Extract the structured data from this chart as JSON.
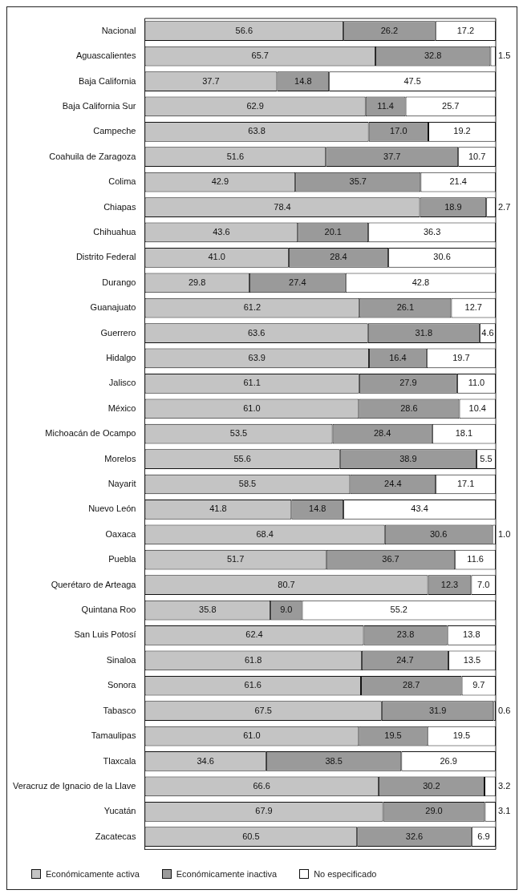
{
  "chart_data": {
    "type": "bar",
    "orientation": "horizontal",
    "stacked": true,
    "legend": "bottom",
    "categories": [
      "Nacional",
      "Aguascalientes",
      "Baja California",
      "Baja California Sur",
      "Campeche",
      "Coahuila de Zaragoza",
      "Colima",
      "Chiapas",
      "Chihuahua",
      "Distrito Federal",
      "Durango",
      "Guanajuato",
      "Guerrero",
      "Hidalgo",
      "Jalisco",
      "México",
      "Michoacán de Ocampo",
      "Morelos",
      "Nayarit",
      "Nuevo León",
      "Oaxaca",
      "Puebla",
      "Querétaro de Arteaga",
      "Quintana Roo",
      "San Luis Potosí",
      "Sinaloa",
      "Sonora",
      "Tabasco",
      "Tamaulipas",
      "Tlaxcala",
      "Veracruz de Ignacio de la Llave",
      "Yucatán",
      "Zacatecas"
    ],
    "series": [
      {
        "name": "Económicamente activa",
        "color": "#c4c4c4",
        "values": [
          56.6,
          65.7,
          37.7,
          62.9,
          63.8,
          51.6,
          42.9,
          78.4,
          43.6,
          41.0,
          29.8,
          61.2,
          63.6,
          63.9,
          61.1,
          61.0,
          53.5,
          55.6,
          58.5,
          41.8,
          68.4,
          51.7,
          80.7,
          35.8,
          62.4,
          61.8,
          61.6,
          67.5,
          61.0,
          34.6,
          66.6,
          67.9,
          60.5
        ],
        "value_labels": [
          "56.6",
          "65.7",
          "37.7",
          "62.9",
          "63.8",
          "51.6",
          "42.9",
          "78.4",
          "43.6",
          "41.0",
          "29.8",
          "61.2",
          "63.6",
          "63.9",
          "61.1",
          "61.0",
          "53.5",
          "55.6",
          "58.5",
          "41.8",
          "68.4",
          "51.7",
          "80.7",
          "35.8",
          "62.4",
          "61.8",
          "61.6",
          "67.5",
          "61.0",
          "34.6",
          "66.6",
          "67.9",
          "60.5"
        ]
      },
      {
        "name": "Económicamente inactiva",
        "color": "#9a9a9a",
        "values": [
          26.2,
          32.8,
          14.8,
          11.4,
          17.0,
          37.7,
          35.7,
          18.9,
          20.1,
          28.4,
          27.4,
          26.1,
          31.8,
          16.4,
          27.9,
          28.6,
          28.4,
          38.9,
          24.4,
          14.8,
          30.6,
          36.7,
          12.3,
          9.0,
          23.8,
          24.7,
          28.7,
          31.9,
          19.5,
          38.5,
          30.2,
          29.0,
          32.6
        ],
        "value_labels": [
          "26.2",
          "32.8",
          "14.8",
          "11.4",
          "17.0",
          "37.7",
          "35.7",
          "18.9",
          "20.1",
          "28.4",
          "27.4",
          "26.1",
          "31.8",
          "16.4",
          "27.9",
          "28.6",
          "28.4",
          "38.9",
          "24.4",
          "14.8",
          "30.6",
          "36.7",
          "12.3",
          "9.0",
          "23.8",
          "24.7",
          "28.7",
          "31.9",
          "19.5",
          "38.5",
          "30.2",
          "29.0",
          "32.6"
        ]
      },
      {
        "name": "No especificado",
        "color": "#ffffff",
        "values": [
          17.2,
          1.5,
          47.5,
          25.7,
          19.2,
          10.7,
          21.4,
          2.7,
          36.3,
          30.6,
          42.8,
          12.7,
          4.6,
          19.7,
          11.0,
          10.4,
          18.1,
          5.5,
          17.1,
          43.4,
          1.0,
          11.6,
          7.0,
          55.2,
          13.8,
          13.5,
          9.7,
          0.6,
          19.5,
          26.9,
          3.2,
          3.1,
          6.9
        ],
        "value_labels": [
          "17.2",
          "1.5",
          "47.5",
          "25.7",
          "19.2",
          "10.7",
          "21.4",
          "2.7",
          "36.3",
          "30.6",
          "42.8",
          "12.7",
          "4.6",
          "19.7",
          "11.0",
          "10.4",
          "18.1",
          "5.5",
          "17.1",
          "43.4",
          "1.0",
          "11.6",
          "7.0",
          "55.2",
          "13.8",
          "13.5",
          "9.7",
          "0.6",
          "19.5",
          "26.9",
          "3.2",
          "3.1",
          "6.9"
        ]
      }
    ]
  }
}
